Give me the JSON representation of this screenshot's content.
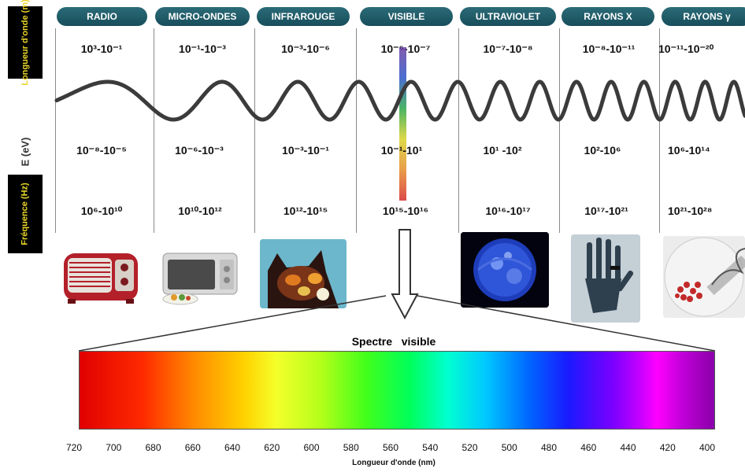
{
  "side_labels": {
    "wavelength": "Longueur d'onde (m)",
    "energy": "E (eV)",
    "frequency": "Fréquence (Hz)"
  },
  "bands": [
    {
      "name": "RADIO",
      "wavelength": "10³-10⁻¹",
      "energy": "10⁻⁸-10⁻⁵",
      "frequency": "10⁶-10¹⁰"
    },
    {
      "name": "MICRO-ONDES",
      "wavelength": "10⁻¹-10⁻³",
      "energy": "10⁻⁶-10⁻³",
      "frequency": "10¹⁰-10¹²"
    },
    {
      "name": "INFRAROUGE",
      "wavelength": "10⁻³-10⁻⁶",
      "energy": "10⁻³-10⁻¹",
      "frequency": "10¹²-10¹⁵"
    },
    {
      "name": "VISIBLE",
      "wavelength": "10⁻⁶-10⁻⁷",
      "energy": "10⁻¹-10¹",
      "frequency": "10¹⁵-10¹⁶"
    },
    {
      "name": "ULTRAVIOLET",
      "wavelength": "10⁻⁷-10⁻⁸",
      "energy": "10¹ -10²",
      "frequency": "10¹⁶-10¹⁷"
    },
    {
      "name": "RAYONS X",
      "wavelength": "10⁻⁸-10⁻¹¹",
      "energy": "10²-10⁶",
      "frequency": "10¹⁷-10²¹"
    },
    {
      "name": "RAYONS γ",
      "wavelength": "10⁻¹¹-10⁻²⁰",
      "energy": "10⁶-10¹⁴",
      "frequency": "10²¹-10²⁸"
    }
  ],
  "visible_spectrum": {
    "title": "Spectre   visible",
    "xlabel": "Longueur d'onde (nm)",
    "ticks": [
      "720",
      "700",
      "680",
      "660",
      "640",
      "620",
      "600",
      "580",
      "560",
      "540",
      "520",
      "500",
      "480",
      "460",
      "440",
      "420",
      "400"
    ]
  },
  "colors": {
    "pill": "#1e5a67",
    "label_bg": "#000000",
    "label_text": "#e9d62a"
  },
  "icons": [
    "radio-image",
    "microwave-image",
    "infrared-cat-image",
    "ultraviolet-sun-image",
    "xray-hand-image",
    "gamma-dna-image"
  ]
}
